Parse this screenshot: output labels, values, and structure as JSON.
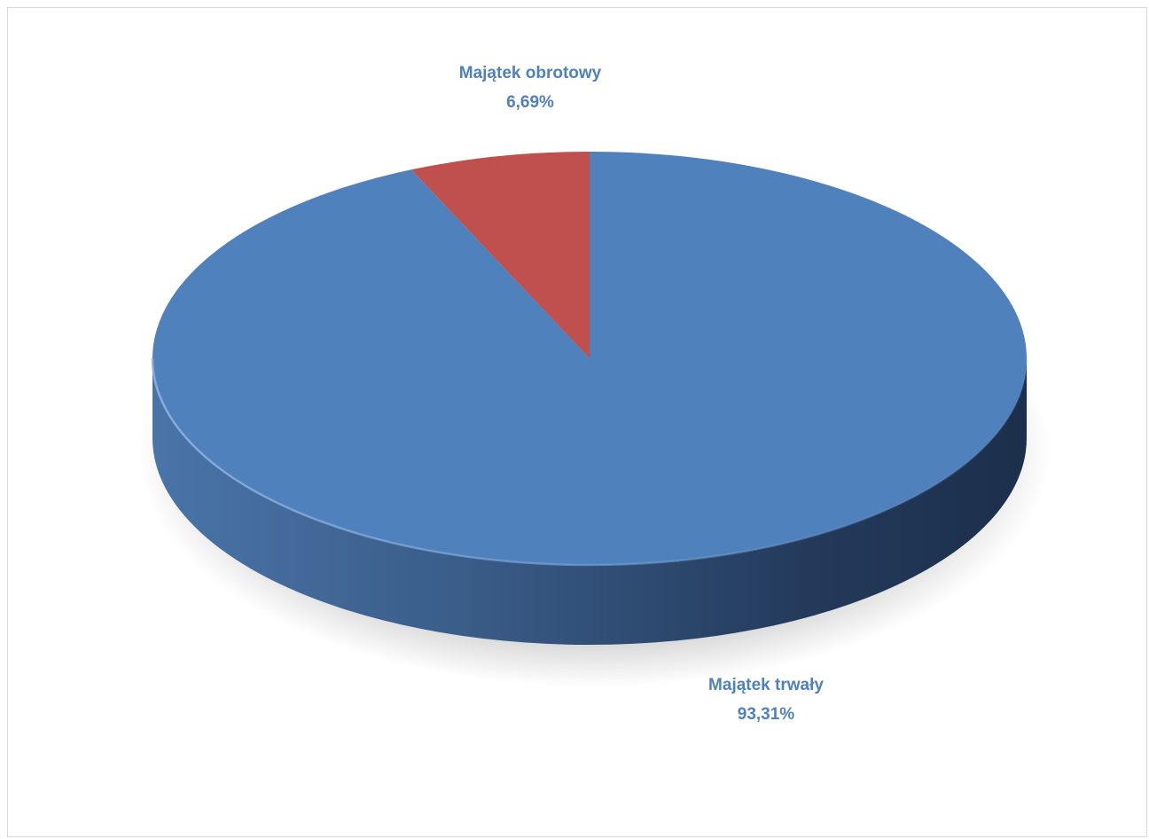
{
  "chart_data": {
    "type": "pie",
    "title": "",
    "categories": [
      "Majątek trwały",
      "Majątek obrotowy"
    ],
    "values": [
      93.31,
      6.69
    ],
    "labels": [
      {
        "name": "Majątek trwały",
        "value_text": "93,31%"
      },
      {
        "name": "Majątek obrotowy",
        "value_text": "6,69%"
      }
    ],
    "colors": [
      "#4f81bd",
      "#c0504d"
    ],
    "label_color": "#4f81bd",
    "style": "3d",
    "legend": "none"
  }
}
